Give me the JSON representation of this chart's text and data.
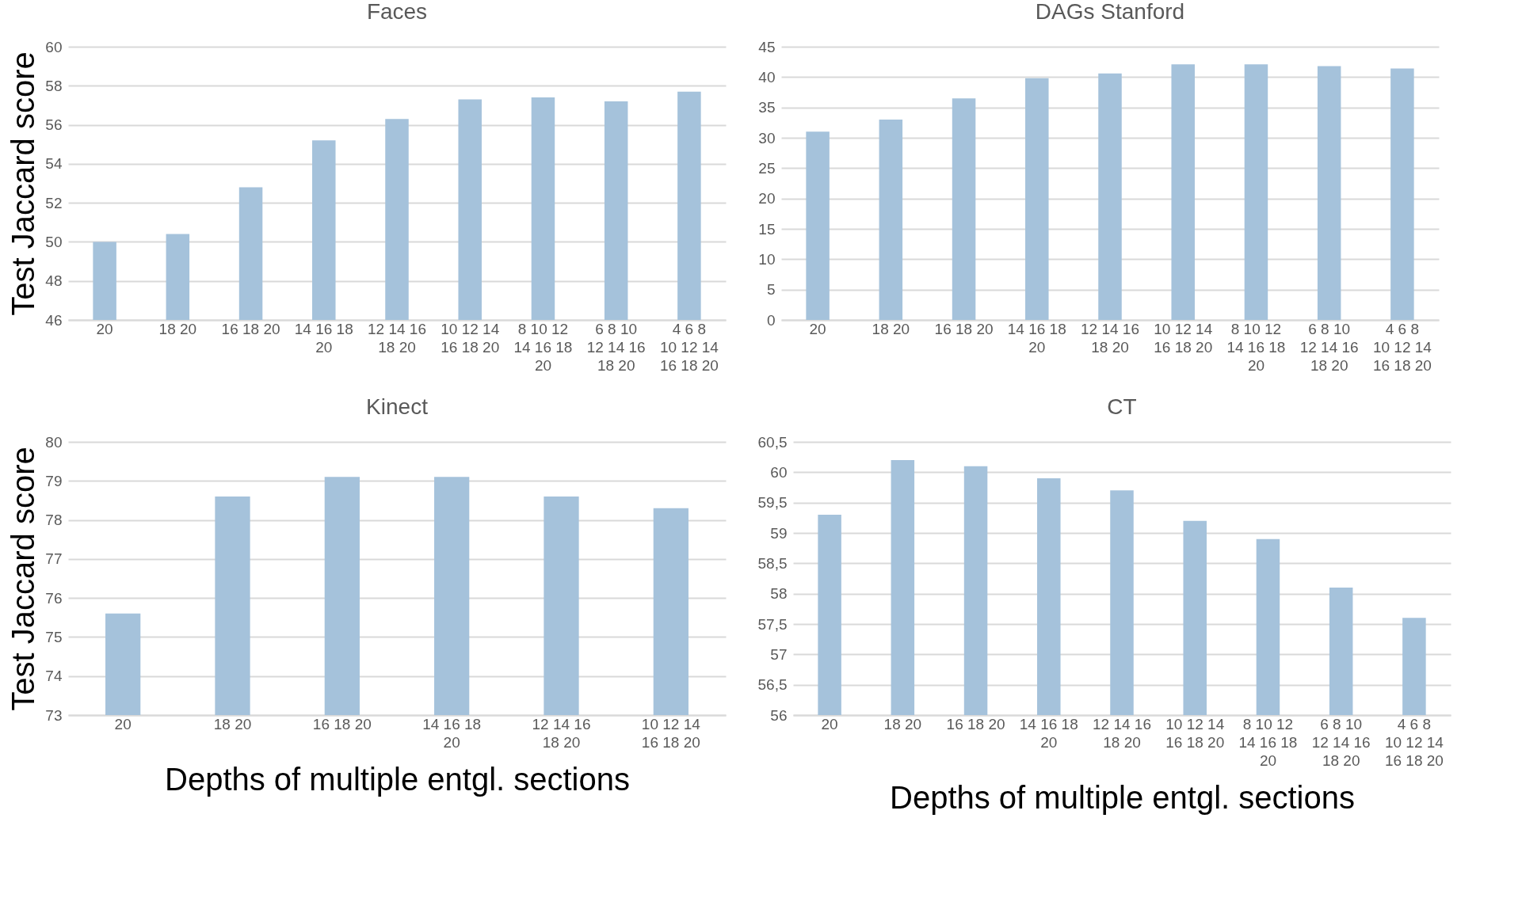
{
  "chart_data": [
    {
      "type": "bar",
      "title": "Faces",
      "ylabel": "Test Jaccard score",
      "categories": [
        "20",
        "18 20",
        "16 18 20",
        "14 16 18 20",
        "12 14 16 18 20",
        "10 12 14 16 18 20",
        "8 10 12 14 16 18 20",
        "6 8 10 12 14 16 18 20",
        "4 6 8 10 12 14 16 18 20"
      ],
      "series": [
        {
          "color": "#a5c2db",
          "values": [
            50.0,
            50.4,
            52.8,
            55.2,
            56.3,
            57.3,
            57.4,
            57.2,
            57.7
          ]
        }
      ],
      "ylim": [
        46,
        60
      ],
      "yticks": [
        46,
        48,
        50,
        52,
        54,
        56,
        58,
        60
      ],
      "grid": "y"
    },
    {
      "type": "bar",
      "title": "DAGs Stanford",
      "categories": [
        "20",
        "18 20",
        "16 18 20",
        "14 16 18 20",
        "12 14 16 18 20",
        "10 12 14 16 18 20",
        "8 10 12 14 16 18 20",
        "6 8 10 12 14 16 18 20",
        "4 6 8 10 12 14 16 18 20"
      ],
      "series": [
        {
          "color": "#a5c2db",
          "values": [
            31,
            33,
            36.5,
            39.8,
            40.6,
            42.1,
            42.1,
            41.8,
            41.4
          ]
        }
      ],
      "ylim": [
        0,
        45
      ],
      "yticks": [
        0,
        5,
        10,
        15,
        20,
        25,
        30,
        35,
        40,
        45
      ],
      "grid": "y"
    },
    {
      "type": "bar",
      "title": "Kinect",
      "ylabel": "Test Jaccard score",
      "xlabel": "Depths of multiple entgl. sections",
      "categories": [
        "20",
        "18 20",
        "16 18 20",
        "14 16 18 20",
        "12 14 16 18 20",
        "10 12 14 16 18 20"
      ],
      "series": [
        {
          "color": "#a5c2db",
          "values": [
            75.6,
            78.6,
            79.1,
            79.1,
            78.6,
            78.3
          ]
        }
      ],
      "ylim": [
        73,
        80
      ],
      "yticks": [
        73,
        74,
        75,
        76,
        77,
        78,
        79,
        80
      ],
      "grid": "y"
    },
    {
      "type": "bar",
      "title": "CT",
      "xlabel": "Depths of multiple entgl. sections",
      "categories": [
        "20",
        "18 20",
        "16 18 20",
        "14 16 18 20",
        "12 14 16 18 20",
        "10 12 14 16 18 20",
        "8 10 12 14 16 18 20",
        "6 8 10 12 14 16 18 20",
        "4 6 8 10 12 14 16 18 20"
      ],
      "series": [
        {
          "color": "#a5c2db",
          "values": [
            59.3,
            60.2,
            60.1,
            59.9,
            59.7,
            59.2,
            58.9,
            58.1,
            57.6
          ]
        }
      ],
      "ylim": [
        56,
        60.5
      ],
      "yticks": [
        56,
        {
          "value": 56.5,
          "label": "56,5"
        },
        57,
        {
          "value": 57.5,
          "label": "57,5"
        },
        58,
        {
          "value": 58.5,
          "label": "58,5"
        },
        59,
        {
          "value": 59.5,
          "label": "59,5"
        },
        60,
        {
          "value": 60.5,
          "label": "60,5"
        }
      ],
      "grid": "y"
    }
  ]
}
